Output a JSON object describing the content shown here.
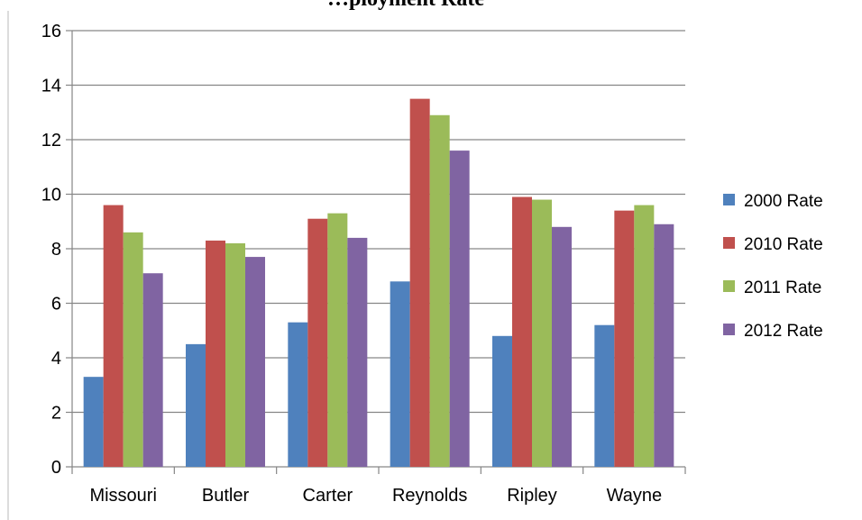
{
  "chart_data": {
    "type": "bar",
    "title": "…ployment Rate",
    "xlabel": "",
    "ylabel": "",
    "categories": [
      "Missouri",
      "Butler",
      "Carter",
      "Reynolds",
      "Ripley",
      "Wayne"
    ],
    "ylim": [
      0,
      16
    ],
    "yticks": [
      "0",
      "2",
      "4",
      "6",
      "8",
      "10",
      "12",
      "14",
      "16"
    ],
    "grid": true,
    "legend_position": "right",
    "series": [
      {
        "name": "2000 Rate",
        "color": "#4f81bd",
        "values": [
          3.3,
          4.5,
          5.3,
          6.8,
          4.8,
          5.2
        ]
      },
      {
        "name": "2010 Rate",
        "color": "#c0504d",
        "values": [
          9.6,
          8.3,
          9.1,
          13.5,
          9.9,
          9.4
        ]
      },
      {
        "name": "2011 Rate",
        "color": "#9bbb59",
        "values": [
          8.6,
          8.2,
          9.3,
          12.9,
          9.8,
          9.6
        ]
      },
      {
        "name": "2012 Rate",
        "color": "#8064a2",
        "values": [
          7.1,
          7.7,
          8.4,
          11.6,
          8.8,
          8.9
        ]
      }
    ]
  }
}
